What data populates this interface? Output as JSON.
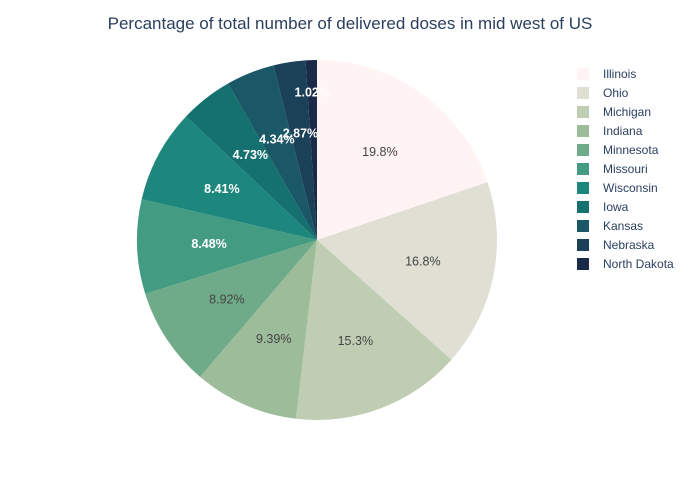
{
  "chart_data": {
    "type": "pie",
    "title": "Percantage of total number of delivered doses in mid west of US",
    "categories": [
      "Illinois",
      "Ohio",
      "Michigan",
      "Indiana",
      "Minnesota",
      "Missouri",
      "Wisconsin",
      "Iowa",
      "Kansas",
      "Nebraska",
      "North Dakota"
    ],
    "values": [
      19.8,
      16.8,
      15.3,
      9.39,
      8.92,
      8.48,
      8.41,
      4.73,
      4.34,
      2.87,
      1.02
    ],
    "labels": [
      "19.8%",
      "16.8%",
      "15.3%",
      "9.39%",
      "8.92%",
      "8.48%",
      "8.41%",
      "4.73%",
      "4.34%",
      "2.87%",
      "1.02%"
    ],
    "colors": [
      "#fff4f3",
      "#dfdfd4",
      "#bfcdb3",
      "#9dbc9a",
      "#6fab88",
      "#439b82",
      "#1d877e",
      "#15716f",
      "#1a5867",
      "#1b4159",
      "#1a2b4a"
    ],
    "direction": "counterclockwise",
    "legend_position": "right"
  }
}
